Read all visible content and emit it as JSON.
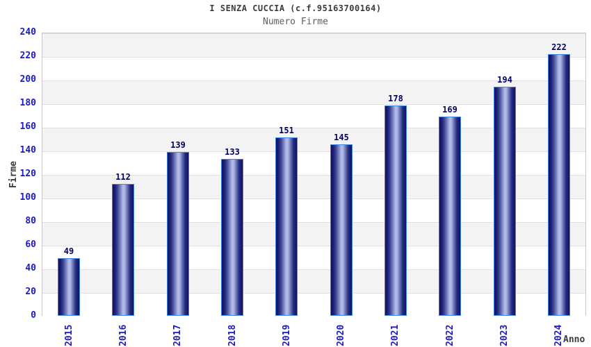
{
  "header": {
    "title": "I SENZA CUCCIA (c.f.95163700164)",
    "subtitle": "Numero Firme"
  },
  "chart_data": {
    "type": "bar",
    "title": "I SENZA CUCCIA (c.f.95163700164)",
    "subtitle": "Numero Firme",
    "xlabel": "Anno",
    "ylabel": "Firme",
    "categories": [
      "2015",
      "2016",
      "2017",
      "2018",
      "2019",
      "2020",
      "2021",
      "2022",
      "2023",
      "2024"
    ],
    "values": [
      49,
      112,
      139,
      133,
      151,
      145,
      178,
      169,
      194,
      222
    ],
    "ylim": [
      0,
      240
    ],
    "yticks": [
      0,
      20,
      40,
      60,
      80,
      100,
      120,
      140,
      160,
      180,
      200,
      220,
      240
    ],
    "grid": "horizontal-alternating-bands",
    "legend": "none",
    "value_labels": "above-bars"
  },
  "colors": {
    "background": "#ffffff",
    "title": "#3b3b3b",
    "subtitle": "#5f5f5f",
    "axis_tick_label": "#1a1acc",
    "value_label": "#000066",
    "axis_name_label": "#3b3b3b",
    "band_gray": "#f3f3f3",
    "band_white": "#ffffff",
    "grid_line": "#e0e0e0",
    "plot_border": "#c8c8c8",
    "bar_border": "#3e86e8",
    "bar_dark": "#12125f",
    "bar_light": "#b6bee8"
  }
}
